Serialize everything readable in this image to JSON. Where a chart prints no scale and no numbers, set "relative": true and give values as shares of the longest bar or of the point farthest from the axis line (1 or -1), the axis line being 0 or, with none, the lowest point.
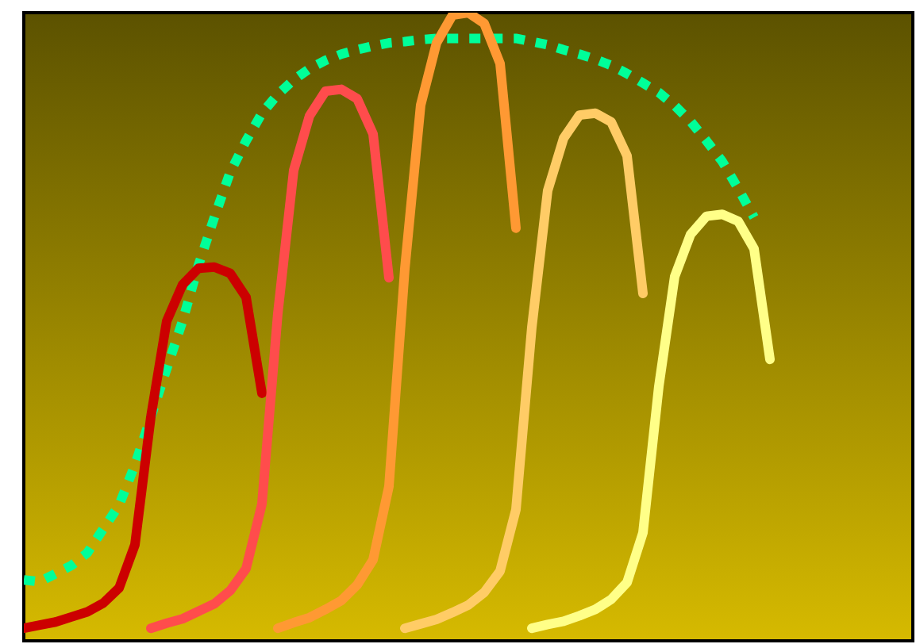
{
  "chart_data": {
    "type": "line",
    "relative": true,
    "categories": [
      null,
      null,
      null,
      null,
      null,
      null,
      null,
      null,
      null,
      null,
      null,
      null,
      null,
      null,
      null,
      null,
      null,
      null,
      null,
      null,
      null,
      null,
      null,
      null,
      null,
      null,
      null,
      null,
      null,
      null,
      null,
      null,
      null,
      null,
      null,
      null,
      null,
      null,
      null,
      null,
      null,
      null,
      null,
      null,
      null,
      null,
      null,
      null,
      null,
      null,
      null,
      null,
      null,
      null,
      null,
      null,
      null
    ],
    "series": [
      {
        "color": "#00ff99",
        "line_style": "dotted",
        "values": [
          0.097,
          0.094,
          0.107,
          0.12,
          0.14,
          0.178,
          0.216,
          0.28,
          0.356,
          0.433,
          0.509,
          0.598,
          0.674,
          0.746,
          0.796,
          0.84,
          0.87,
          0.893,
          0.911,
          0.924,
          0.934,
          0.941,
          0.947,
          0.952,
          0.954,
          0.957,
          0.959,
          0.959,
          0.959,
          0.959,
          0.959,
          0.959,
          0.954,
          0.949,
          0.941,
          0.934,
          0.926,
          0.916,
          0.903,
          0.888,
          0.873,
          0.852,
          0.827,
          0.796,
          0.763,
          0.72,
          0.674,
          null,
          null,
          null,
          null,
          null,
          null,
          null,
          null,
          null,
          null
        ]
      },
      {
        "color": "#cc0000",
        "values": [
          0.02,
          0.025,
          0.03,
          0.038,
          0.046,
          0.06,
          0.084,
          0.153,
          0.356,
          0.509,
          0.567,
          0.593,
          0.595,
          0.585,
          0.547,
          0.394,
          null,
          null,
          null,
          null,
          null,
          null,
          null,
          null,
          null,
          null,
          null,
          null,
          null,
          null,
          null,
          null,
          null,
          null,
          null,
          null,
          null,
          null,
          null,
          null,
          null,
          null,
          null,
          null,
          null,
          null,
          null,
          null,
          null,
          null,
          null,
          null,
          null,
          null,
          null,
          null,
          null
        ]
      },
      {
        "color": "#ff4c4c",
        "values": [
          null,
          null,
          null,
          null,
          null,
          null,
          null,
          null,
          0.02,
          0.028,
          0.035,
          0.047,
          0.059,
          0.08,
          0.115,
          0.218,
          0.521,
          0.749,
          0.836,
          0.875,
          0.878,
          0.863,
          0.807,
          0.578,
          null,
          null,
          null,
          null,
          null,
          null,
          null,
          null,
          null,
          null,
          null,
          null,
          null,
          null,
          null,
          null,
          null,
          null,
          null,
          null,
          null,
          null,
          null,
          null,
          null,
          null,
          null,
          null,
          null,
          null,
          null,
          null,
          null
        ]
      },
      {
        "color": "#ff9933",
        "values": [
          null,
          null,
          null,
          null,
          null,
          null,
          null,
          null,
          null,
          null,
          null,
          null,
          null,
          null,
          null,
          null,
          0.02,
          0.029,
          0.037,
          0.05,
          0.064,
          0.089,
          0.129,
          0.246,
          0.592,
          0.853,
          0.952,
          0.996,
          1.0,
          0.983,
          0.919,
          0.657,
          null,
          null,
          null,
          null,
          null,
          null,
          null,
          null,
          null,
          null,
          null,
          null,
          null,
          null,
          null,
          null,
          null,
          null,
          null,
          null,
          null,
          null,
          null,
          null,
          null
        ]
      },
      {
        "color": "#ffcc66",
        "values": [
          null,
          null,
          null,
          null,
          null,
          null,
          null,
          null,
          null,
          null,
          null,
          null,
          null,
          null,
          null,
          null,
          null,
          null,
          null,
          null,
          null,
          null,
          null,
          null,
          0.02,
          0.027,
          0.034,
          0.045,
          0.057,
          0.077,
          0.111,
          0.209,
          0.499,
          0.717,
          0.8,
          0.837,
          0.84,
          0.826,
          0.772,
          0.553,
          null,
          null,
          null,
          null,
          null,
          null,
          null,
          null,
          null,
          null,
          null,
          null,
          null,
          null,
          null,
          null,
          null
        ]
      },
      {
        "color": "#ffff88",
        "values": [
          null,
          null,
          null,
          null,
          null,
          null,
          null,
          null,
          null,
          null,
          null,
          null,
          null,
          null,
          null,
          null,
          null,
          null,
          null,
          null,
          null,
          null,
          null,
          null,
          null,
          null,
          null,
          null,
          null,
          null,
          null,
          null,
          0.02,
          0.026,
          0.031,
          0.04,
          0.05,
          0.066,
          0.093,
          0.172,
          0.405,
          0.58,
          0.647,
          0.676,
          0.679,
          0.668,
          0.624,
          0.448,
          null,
          null,
          null,
          null,
          null,
          null,
          null,
          null,
          null
        ]
      }
    ]
  }
}
